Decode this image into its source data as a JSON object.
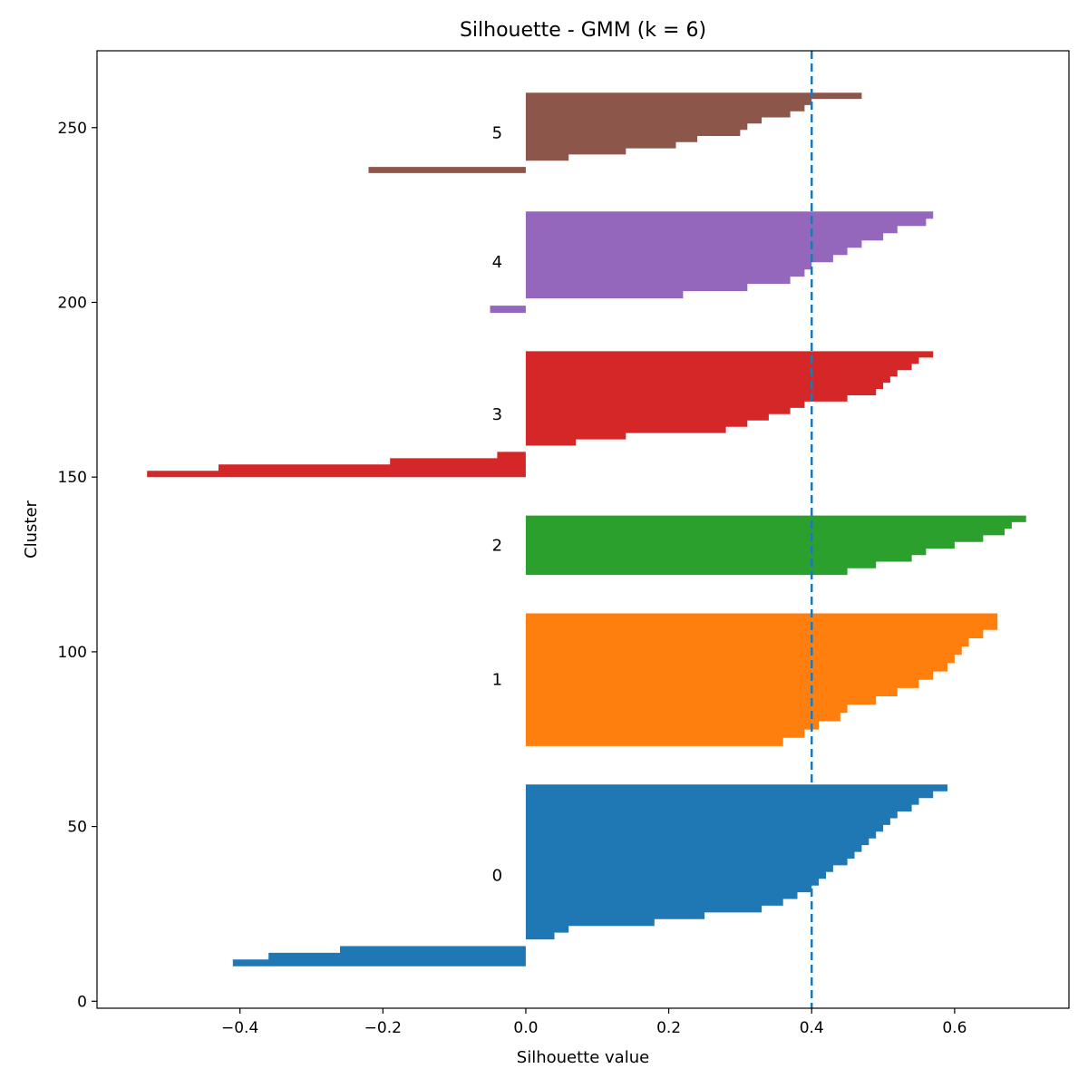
{
  "chart_data": {
    "type": "area",
    "title": "Silhouette - GMM (k = 6)",
    "xlabel": "Silhouette value",
    "ylabel": "Cluster",
    "xlim": [
      -0.6,
      0.76
    ],
    "ylim": [
      -2,
      272
    ],
    "x_ticks": [
      -0.4,
      -0.2,
      0.0,
      0.2,
      0.4,
      0.6
    ],
    "x_tick_labels": [
      "−0.4",
      "−0.2",
      "0.0",
      "0.2",
      "0.4",
      "0.6"
    ],
    "y_ticks": [
      0,
      50,
      100,
      150,
      200,
      250
    ],
    "y_tick_labels": [
      "0",
      "50",
      "100",
      "150",
      "200",
      "250"
    ],
    "grid": false,
    "reference_line": {
      "x": 0.4,
      "style": "dashed",
      "color": "#1f77b4"
    },
    "series": [
      {
        "name": "0",
        "color": "#1f77b4",
        "y_start": 10,
        "y_end": 62,
        "values": [
          -0.41,
          -0.36,
          -0.26,
          0.0,
          0.04,
          0.06,
          0.18,
          0.25,
          0.33,
          0.36,
          0.38,
          0.4,
          0.41,
          0.42,
          0.43,
          0.45,
          0.46,
          0.47,
          0.48,
          0.49,
          0.5,
          0.51,
          0.52,
          0.54,
          0.55,
          0.57,
          0.59
        ]
      },
      {
        "name": "1",
        "color": "#ff7f0e",
        "y_start": 73,
        "y_end": 111,
        "values": [
          0.36,
          0.39,
          0.41,
          0.44,
          0.45,
          0.49,
          0.52,
          0.55,
          0.57,
          0.59,
          0.6,
          0.61,
          0.62,
          0.64,
          0.66,
          0.66
        ]
      },
      {
        "name": "2",
        "color": "#2ca02c",
        "y_start": 122,
        "y_end": 139,
        "values": [
          0.45,
          0.49,
          0.54,
          0.56,
          0.6,
          0.64,
          0.67,
          0.68,
          0.7
        ]
      },
      {
        "name": "3",
        "color": "#d62728",
        "y_start": 150,
        "y_end": 186,
        "values": [
          -0.53,
          -0.43,
          -0.19,
          -0.04,
          0.0,
          0.07,
          0.14,
          0.28,
          0.31,
          0.34,
          0.37,
          0.39,
          0.45,
          0.49,
          0.5,
          0.51,
          0.52,
          0.54,
          0.55,
          0.57
        ]
      },
      {
        "name": "4",
        "color": "#9467bd",
        "y_start": 197,
        "y_end": 226,
        "values": [
          -0.05,
          0.0,
          0.22,
          0.31,
          0.37,
          0.39,
          0.4,
          0.43,
          0.45,
          0.47,
          0.5,
          0.52,
          0.56,
          0.57
        ]
      },
      {
        "name": "5",
        "color": "#8c564b",
        "y_start": 237,
        "y_end": 260,
        "values": [
          -0.22,
          0.0,
          0.06,
          0.14,
          0.21,
          0.24,
          0.3,
          0.31,
          0.33,
          0.37,
          0.39,
          0.4,
          0.47
        ]
      }
    ]
  }
}
